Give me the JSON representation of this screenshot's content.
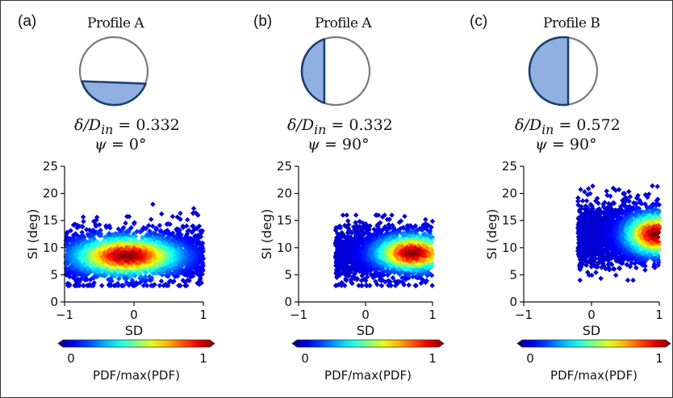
{
  "panels": [
    {
      "tag": "(a)",
      "profile": "Profile A",
      "ratio_label": "δ/D",
      "ratio_sub": "in",
      "ratio_value": "= 0.332",
      "psi_label": "ψ",
      "psi_value": "= 0°",
      "profile_fill": "bottom-segment",
      "fill_fraction": 0.332
    },
    {
      "tag": "(b)",
      "profile": "Profile A",
      "ratio_label": "δ/D",
      "ratio_sub": "in",
      "ratio_value": "= 0.332",
      "psi_label": "ψ",
      "psi_value": "= 90°",
      "profile_fill": "left-segment",
      "fill_fraction": 0.332
    },
    {
      "tag": "(c)",
      "profile": "Profile B",
      "ratio_label": "δ/D",
      "ratio_sub": "in",
      "ratio_value": "= 0.572",
      "psi_label": "ψ",
      "psi_value": "= 90°",
      "profile_fill": "left-segment",
      "fill_fraction": 0.572
    }
  ],
  "colors": {
    "segment_fill": "#8fb0e0",
    "segment_edge": "#1c3f73",
    "circle_edge": "#7a7a7a"
  },
  "chart_data": [
    {
      "type": "heatmap",
      "xlabel": "SD",
      "ylabel": "SI (deg)",
      "xlim": [
        -1,
        1
      ],
      "ylim": [
        0,
        25
      ],
      "xticks": [
        "−1",
        "0",
        "1"
      ],
      "yticks": [
        "0",
        "5",
        "10",
        "15",
        "20",
        "25"
      ],
      "colorbar": {
        "label": "PDF/max(PDF)",
        "min": "0",
        "max": "1",
        "colormap": "jet"
      },
      "distribution": {
        "x_range": [
          -0.98,
          1.0
        ],
        "y_mean": 8.5,
        "y_spread": 2.6,
        "peak": [
          -0.1,
          8.5
        ],
        "y_extent": [
          3,
          18
        ]
      }
    },
    {
      "type": "heatmap",
      "xlabel": "SD",
      "ylabel": "SI (deg)",
      "xlim": [
        -1,
        1
      ],
      "ylim": [
        0,
        25
      ],
      "xticks": [
        "−1",
        "0",
        "1"
      ],
      "yticks": [
        "0",
        "5",
        "10",
        "15",
        "20",
        "25"
      ],
      "colorbar": {
        "label": "PDF/max(PDF)",
        "min": "0",
        "max": "1",
        "colormap": "jet"
      },
      "distribution": {
        "x_range": [
          -0.45,
          1.0
        ],
        "y_mean": 9.0,
        "y_spread": 2.4,
        "peak": [
          0.7,
          9.0
        ],
        "y_extent": [
          3,
          16
        ]
      }
    },
    {
      "type": "heatmap",
      "xlabel": "SD",
      "ylabel": "SI (deg)",
      "xlim": [
        -1,
        1
      ],
      "ylim": [
        0,
        25
      ],
      "xticks": [
        "−1",
        "0",
        "1"
      ],
      "yticks": [
        "0",
        "5",
        "10",
        "15",
        "20",
        "25"
      ],
      "colorbar": {
        "label": "PDF/max(PDF)",
        "min": "0",
        "max": "1",
        "colormap": "jet"
      },
      "distribution": {
        "x_range": [
          -0.2,
          1.0
        ],
        "y_mean": 12.5,
        "y_spread": 2.8,
        "peak": [
          0.95,
          12.5
        ],
        "y_extent": [
          4,
          23
        ]
      }
    }
  ]
}
